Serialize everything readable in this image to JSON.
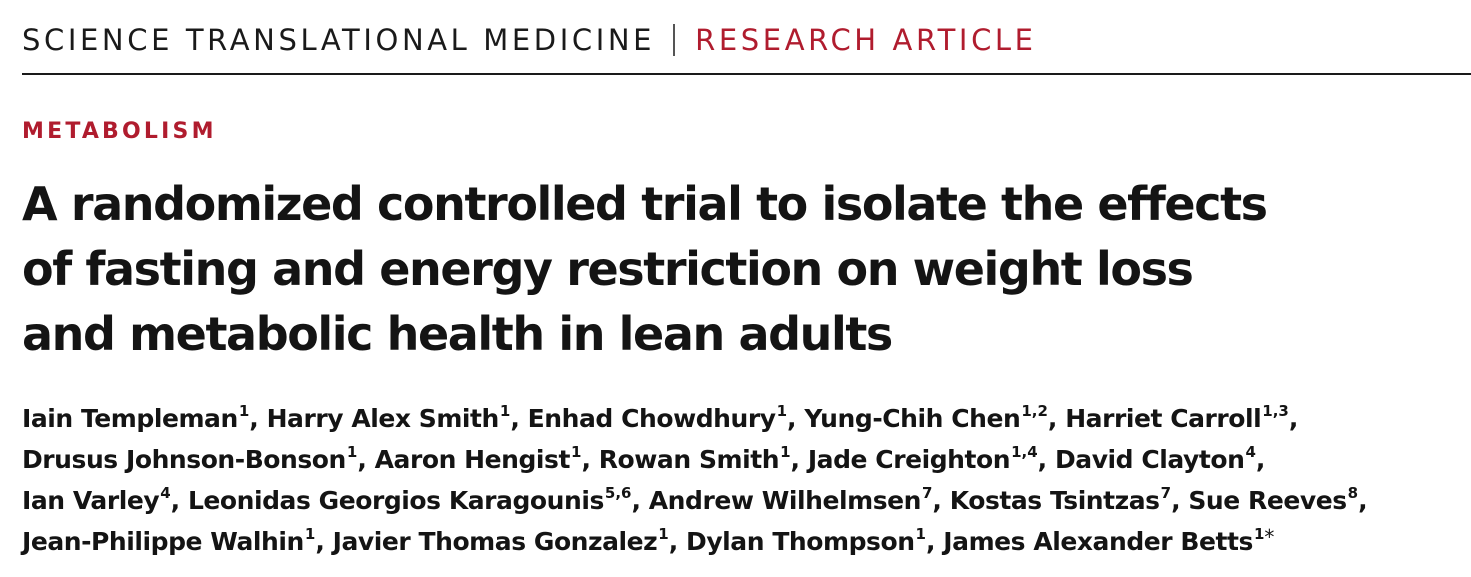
{
  "header": {
    "journal": "SCIENCE TRANSLATIONAL MEDICINE",
    "separator": "|",
    "article_type": "RESEARCH ARTICLE"
  },
  "section": "METABOLISM",
  "title_lines": [
    "A randomized controlled trial to isolate the effects",
    "of fasting and energy restriction on weight loss",
    "and metabolic health in lean adults"
  ],
  "author_lines": [
    [
      {
        "name": "Iain Templeman",
        "aff": "1"
      },
      {
        "name": "Harry Alex Smith",
        "aff": "1"
      },
      {
        "name": "Enhad Chowdhury",
        "aff": "1"
      },
      {
        "name": "Yung-Chih Chen",
        "aff": "1,2"
      },
      {
        "name": "Harriet Carroll",
        "aff": "1,3"
      }
    ],
    [
      {
        "name": "Drusus Johnson-Bonson",
        "aff": "1"
      },
      {
        "name": "Aaron Hengist",
        "aff": "1"
      },
      {
        "name": "Rowan Smith",
        "aff": "1"
      },
      {
        "name": "Jade Creighton",
        "aff": "1,4"
      },
      {
        "name": "David Clayton",
        "aff": "4"
      }
    ],
    [
      {
        "name": "Ian Varley",
        "aff": "4"
      },
      {
        "name": "Leonidas Georgios Karagounis",
        "aff": "5,6"
      },
      {
        "name": "Andrew Wilhelmsen",
        "aff": "7"
      },
      {
        "name": "Kostas Tsintzas",
        "aff": "7"
      },
      {
        "name": "Sue Reeves",
        "aff": "8"
      }
    ],
    [
      {
        "name": "Jean-Philippe Walhin",
        "aff": "1"
      },
      {
        "name": "Javier Thomas Gonzalez",
        "aff": "1"
      },
      {
        "name": "Dylan Thompson",
        "aff": "1"
      },
      {
        "name": "James Alexander Betts",
        "aff": "1",
        "corresponding_mark": "*"
      }
    ]
  ],
  "colors": {
    "accent_red": "#b01c2e",
    "text": "#141414"
  }
}
